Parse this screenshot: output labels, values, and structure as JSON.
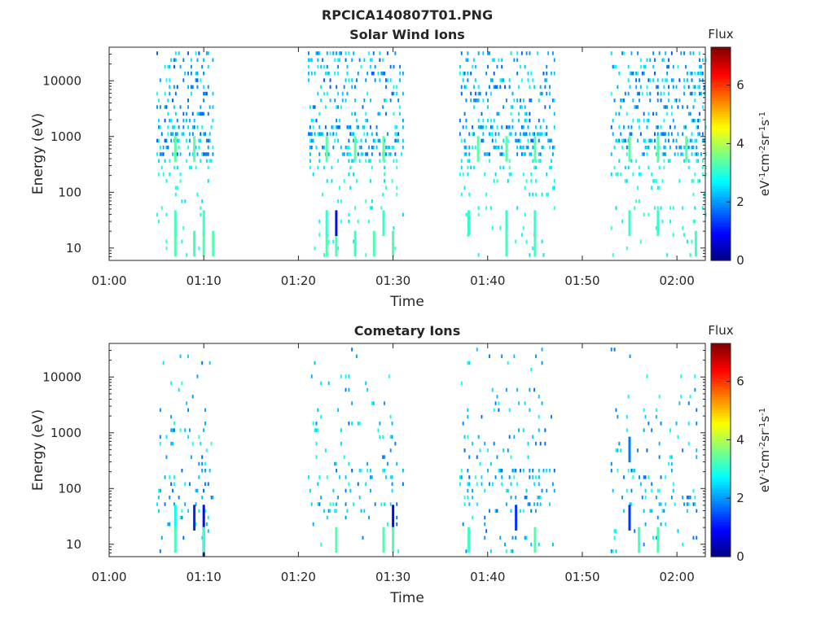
{
  "figure_title": "RPCICA140807T01.PNG",
  "colors": {
    "axes": "#262626",
    "background": "#ffffff",
    "colormap": [
      "#00007f",
      "#0000ff",
      "#0080ff",
      "#00ffff",
      "#80ff80",
      "#ffff00",
      "#ff8000",
      "#ff0000",
      "#7f0000"
    ]
  },
  "chart_data": [
    {
      "type": "heatmap",
      "title": "Solar Wind Ions",
      "xlabel": "Time",
      "ylabel": "Energy (eV)",
      "y_scale": "log",
      "ylim": [
        6,
        40000
      ],
      "xlim": [
        "01:00",
        "02:03"
      ],
      "x_ticks": [
        "01:00",
        "01:10",
        "01:20",
        "01:30",
        "01:40",
        "01:50",
        "02:00"
      ],
      "y_ticks": [
        "10",
        "100",
        "1000",
        "10000"
      ],
      "colorbar": {
        "title": "Flux",
        "label": "eV-1cm-2sr-1s-1",
        "range": [
          0,
          7.3
        ],
        "ticks": [
          "0",
          "2",
          "4",
          "6"
        ]
      },
      "grid": false,
      "scan_intervals": [
        {
          "start": "01:05",
          "end": "01:11"
        },
        {
          "start": "01:21",
          "end": "01:31"
        },
        {
          "start": "01:37",
          "end": "01:47"
        },
        {
          "start": "01:53",
          "end": "02:03"
        }
      ],
      "features": [
        {
          "time": "01:07",
          "energy": 12,
          "flux": 3.3
        },
        {
          "time": "01:09",
          "energy": 12,
          "flux": 3.2
        },
        {
          "time": "01:10",
          "energy": 12,
          "flux": 3.3
        },
        {
          "time": "01:11",
          "energy": 12,
          "flux": 3.3
        },
        {
          "time": "01:07",
          "energy": 28,
          "flux": 3.2
        },
        {
          "time": "01:10",
          "energy": 28,
          "flux": 3.2
        },
        {
          "time": "01:07",
          "energy": 600,
          "flux": 3.4
        },
        {
          "time": "01:09",
          "energy": 600,
          "flux": 3.4
        },
        {
          "time": "01:23",
          "energy": 12,
          "flux": 3.3
        },
        {
          "time": "01:24",
          "energy": 12,
          "flux": 3.3
        },
        {
          "time": "01:26",
          "energy": 12,
          "flux": 3.2
        },
        {
          "time": "01:28",
          "energy": 12,
          "flux": 3.3
        },
        {
          "time": "01:30",
          "energy": 12,
          "flux": 3.3
        },
        {
          "time": "01:24",
          "energy": 28,
          "flux": 1.0
        },
        {
          "time": "01:23",
          "energy": 28,
          "flux": 3.1
        },
        {
          "time": "01:29",
          "energy": 28,
          "flux": 3.1
        },
        {
          "time": "01:23",
          "energy": 600,
          "flux": 3.4
        },
        {
          "time": "01:26",
          "energy": 600,
          "flux": 3.4
        },
        {
          "time": "01:29",
          "energy": 600,
          "flux": 3.4
        },
        {
          "time": "01:38",
          "energy": 28,
          "flux": 3.1
        },
        {
          "time": "01:42",
          "energy": 28,
          "flux": 3.1
        },
        {
          "time": "01:45",
          "energy": 28,
          "flux": 3.1
        },
        {
          "time": "01:42",
          "energy": 12,
          "flux": 3.2
        },
        {
          "time": "01:45",
          "energy": 12,
          "flux": 3.2
        },
        {
          "time": "01:39",
          "energy": 600,
          "flux": 3.4
        },
        {
          "time": "01:42",
          "energy": 600,
          "flux": 3.4
        },
        {
          "time": "01:45",
          "energy": 600,
          "flux": 3.4
        },
        {
          "time": "01:55",
          "energy": 28,
          "flux": 3.1
        },
        {
          "time": "01:58",
          "energy": 28,
          "flux": 3.1
        },
        {
          "time": "02:02",
          "energy": 12,
          "flux": 3.2
        },
        {
          "time": "01:55",
          "energy": 600,
          "flux": 3.4
        },
        {
          "time": "01:58",
          "energy": 600,
          "flux": 3.4
        },
        {
          "time": "02:01",
          "energy": 600,
          "flux": 3.4
        }
      ]
    },
    {
      "type": "heatmap",
      "title": "Cometary Ions",
      "xlabel": "Time",
      "ylabel": "Energy (eV)",
      "y_scale": "log",
      "ylim": [
        6,
        40000
      ],
      "xlim": [
        "01:00",
        "02:03"
      ],
      "x_ticks": [
        "01:00",
        "01:10",
        "01:20",
        "01:30",
        "01:40",
        "01:50",
        "02:00"
      ],
      "y_ticks": [
        "10",
        "100",
        "1000",
        "10000"
      ],
      "colorbar": {
        "title": "Flux",
        "label": "eV-1cm-2sr-1s-1",
        "range": [
          0,
          7.3
        ],
        "ticks": [
          "0",
          "2",
          "4",
          "6"
        ]
      },
      "grid": false,
      "scan_intervals": [
        {
          "start": "01:05",
          "end": "01:11"
        },
        {
          "start": "01:21",
          "end": "01:31"
        },
        {
          "start": "01:37",
          "end": "01:47"
        },
        {
          "start": "01:53",
          "end": "02:02"
        }
      ],
      "features": [
        {
          "time": "01:10",
          "energy": 30,
          "flux": 1.0
        },
        {
          "time": "01:10",
          "energy": 10,
          "flux": 0.9
        },
        {
          "time": "01:09",
          "energy": 30,
          "flux": 1.2
        },
        {
          "time": "01:07",
          "energy": 30,
          "flux": 2.8
        },
        {
          "time": "01:07",
          "energy": 12,
          "flux": 3.2
        },
        {
          "time": "01:10",
          "energy": 12,
          "flux": 3.2
        },
        {
          "time": "01:30",
          "energy": 30,
          "flux": 1.0
        },
        {
          "time": "01:29",
          "energy": 12,
          "flux": 3.3
        },
        {
          "time": "01:30",
          "energy": 12,
          "flux": 3.3
        },
        {
          "time": "01:24",
          "energy": 12,
          "flux": 3.3
        },
        {
          "time": "01:43",
          "energy": 30,
          "flux": 1.3
        },
        {
          "time": "01:38",
          "energy": 12,
          "flux": 3.2
        },
        {
          "time": "01:45",
          "energy": 12,
          "flux": 3.3
        },
        {
          "time": "01:56",
          "energy": 12,
          "flux": 3.2
        },
        {
          "time": "01:58",
          "energy": 12,
          "flux": 3.3
        },
        {
          "time": "01:55",
          "energy": 30,
          "flux": 1.3
        },
        {
          "time": "01:55",
          "energy": 500,
          "flux": 1.8
        }
      ]
    }
  ]
}
